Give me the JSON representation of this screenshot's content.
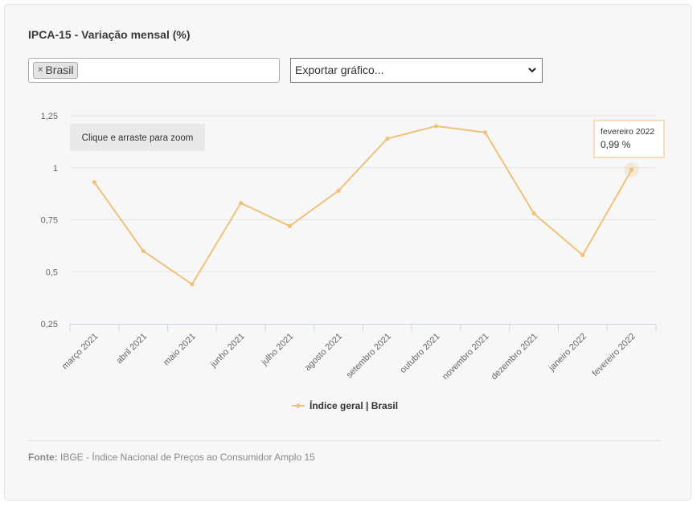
{
  "title": "IPCA-15 - Variação mensal (%)",
  "filter": {
    "tag_remove": "×",
    "tag_label": "Brasil"
  },
  "export_select": {
    "selected": "Exportar gráfico..."
  },
  "zoom_hint": "Clique e arraste para zoom",
  "tooltip": {
    "category": "fevereiro 2022",
    "value": "0,99 %"
  },
  "source": {
    "label": "Fonte:",
    "text": " IBGE - Índice Nacional de Preços ao Consumidor Amplo 15"
  },
  "chart_data": {
    "type": "line",
    "categories": [
      "março 2021",
      "abril 2021",
      "maio 2021",
      "junho 2021",
      "julho 2021",
      "agosto 2021",
      "setembro 2021",
      "outubro 2021",
      "novembro 2021",
      "dezembro 2021",
      "janeiro 2022",
      "fevereiro 2022"
    ],
    "series": [
      {
        "name": "Índice geral | Brasil",
        "color": "#f0c17a",
        "values": [
          0.93,
          0.6,
          0.44,
          0.83,
          0.72,
          0.89,
          1.14,
          1.2,
          1.17,
          0.78,
          0.58,
          0.99
        ]
      }
    ],
    "y_ticks": [
      "0,25",
      "0,5",
      "0,75",
      "1",
      "1,25"
    ],
    "y_tick_values": [
      0.25,
      0.5,
      0.75,
      1,
      1.25
    ],
    "ylim": [
      0.25,
      1.25
    ],
    "grid": true,
    "legend_position": "bottom-center",
    "highlight_index": 11
  }
}
